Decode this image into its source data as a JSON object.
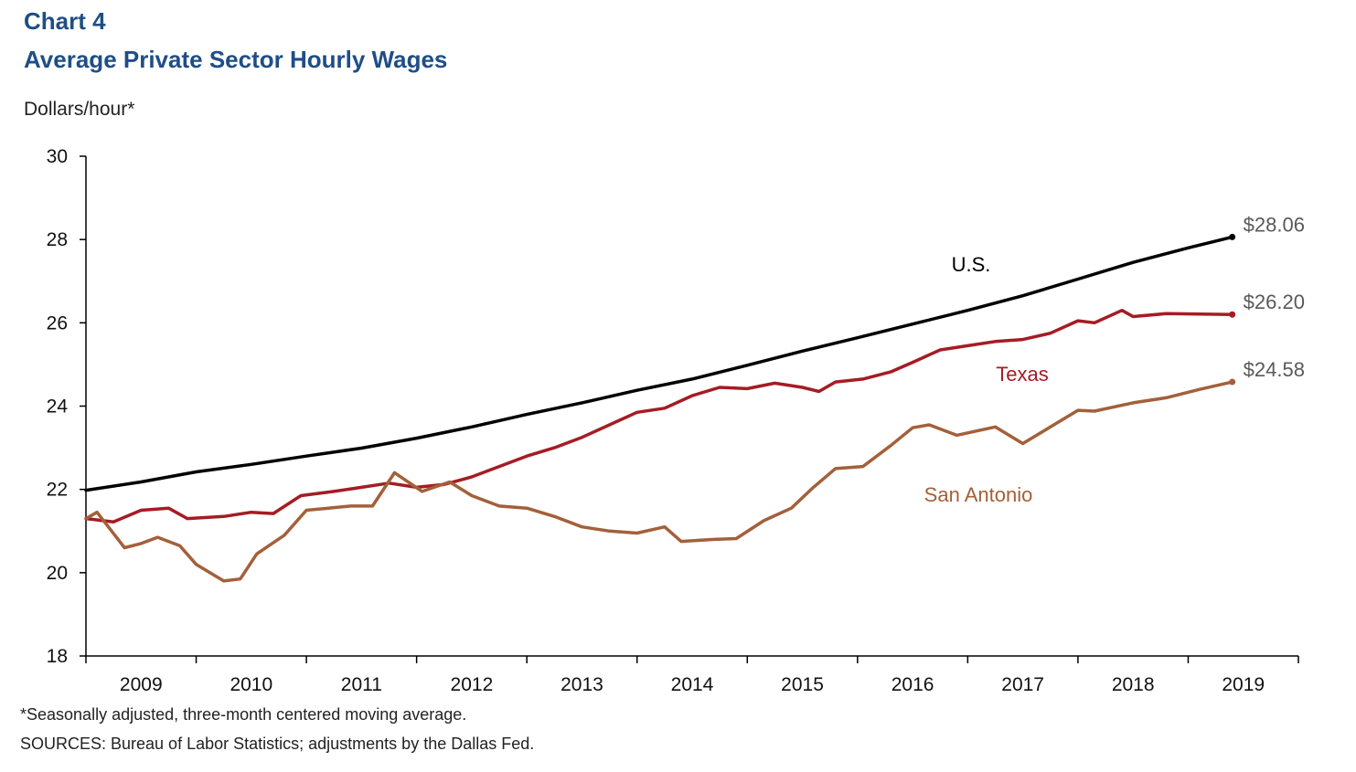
{
  "header": {
    "chart_label": "Chart 4",
    "title": "Average Private Sector Hourly Wages",
    "units": "Dollars/hour*"
  },
  "footer": {
    "footnote": "*Seasonally adjusted, three-month centered moving average.",
    "sources": "SOURCES: Bureau of Labor Statistics; adjustments by the Dallas Fed."
  },
  "chart_data": {
    "type": "line",
    "title": "Average Private Sector Hourly Wages",
    "ylabel": "Dollars/hour*",
    "xlabel": "",
    "ylim": [
      18,
      30
    ],
    "xlim": [
      2008.5,
      2019.5
    ],
    "y_ticks": [
      18,
      20,
      22,
      24,
      26,
      28,
      30
    ],
    "x_tick_labels": [
      "2009",
      "2010",
      "2011",
      "2012",
      "2013",
      "2014",
      "2015",
      "2016",
      "2017",
      "2018",
      "2019"
    ],
    "grid": false,
    "legend": "inline labels",
    "series": [
      {
        "name": "U.S.",
        "color": "#000000",
        "end_label": "$28.06",
        "points": [
          [
            2008.5,
            21.98
          ],
          [
            2009.0,
            22.18
          ],
          [
            2009.5,
            22.42
          ],
          [
            2010.0,
            22.6
          ],
          [
            2010.5,
            22.8
          ],
          [
            2011.0,
            22.99
          ],
          [
            2011.5,
            23.23
          ],
          [
            2012.0,
            23.5
          ],
          [
            2012.5,
            23.8
          ],
          [
            2013.0,
            24.08
          ],
          [
            2013.5,
            24.38
          ],
          [
            2014.0,
            24.65
          ],
          [
            2014.5,
            24.98
          ],
          [
            2015.0,
            25.32
          ],
          [
            2015.5,
            25.64
          ],
          [
            2016.0,
            25.97
          ],
          [
            2016.5,
            26.3
          ],
          [
            2017.0,
            26.65
          ],
          [
            2017.5,
            27.05
          ],
          [
            2018.0,
            27.45
          ],
          [
            2018.5,
            27.8
          ],
          [
            2018.9,
            28.06
          ]
        ]
      },
      {
        "name": "Texas",
        "color": "#a51c24",
        "end_label": "$26.20",
        "points": [
          [
            2008.5,
            21.3
          ],
          [
            2008.75,
            21.22
          ],
          [
            2009.0,
            21.5
          ],
          [
            2009.25,
            21.55
          ],
          [
            2009.42,
            21.3
          ],
          [
            2009.75,
            21.35
          ],
          [
            2010.0,
            21.45
          ],
          [
            2010.2,
            21.42
          ],
          [
            2010.45,
            21.85
          ],
          [
            2010.75,
            21.95
          ],
          [
            2011.0,
            22.05
          ],
          [
            2011.25,
            22.15
          ],
          [
            2011.5,
            22.05
          ],
          [
            2011.75,
            22.12
          ],
          [
            2012.0,
            22.3
          ],
          [
            2012.25,
            22.55
          ],
          [
            2012.5,
            22.8
          ],
          [
            2012.75,
            23.0
          ],
          [
            2013.0,
            23.25
          ],
          [
            2013.25,
            23.55
          ],
          [
            2013.5,
            23.85
          ],
          [
            2013.75,
            23.95
          ],
          [
            2014.0,
            24.25
          ],
          [
            2014.25,
            24.45
          ],
          [
            2014.5,
            24.42
          ],
          [
            2014.75,
            24.55
          ],
          [
            2015.0,
            24.45
          ],
          [
            2015.15,
            24.35
          ],
          [
            2015.3,
            24.58
          ],
          [
            2015.55,
            24.65
          ],
          [
            2015.8,
            24.82
          ],
          [
            2016.0,
            25.05
          ],
          [
            2016.25,
            25.35
          ],
          [
            2016.5,
            25.45
          ],
          [
            2016.75,
            25.55
          ],
          [
            2017.0,
            25.6
          ],
          [
            2017.25,
            25.75
          ],
          [
            2017.5,
            26.05
          ],
          [
            2017.65,
            26.0
          ],
          [
            2017.9,
            26.3
          ],
          [
            2018.0,
            26.15
          ],
          [
            2018.3,
            26.22
          ],
          [
            2018.9,
            26.2
          ]
        ]
      },
      {
        "name": "San Antonio",
        "color": "#a3603a",
        "end_label": "$24.58",
        "points": [
          [
            2008.5,
            21.3
          ],
          [
            2008.6,
            21.45
          ],
          [
            2008.85,
            20.6
          ],
          [
            2009.0,
            20.7
          ],
          [
            2009.15,
            20.85
          ],
          [
            2009.35,
            20.65
          ],
          [
            2009.5,
            20.2
          ],
          [
            2009.75,
            19.8
          ],
          [
            2009.9,
            19.85
          ],
          [
            2010.05,
            20.45
          ],
          [
            2010.3,
            20.9
          ],
          [
            2010.5,
            21.5
          ],
          [
            2010.7,
            21.55
          ],
          [
            2010.9,
            21.6
          ],
          [
            2011.1,
            21.6
          ],
          [
            2011.3,
            22.4
          ],
          [
            2011.55,
            21.95
          ],
          [
            2011.8,
            22.18
          ],
          [
            2012.0,
            21.85
          ],
          [
            2012.25,
            21.6
          ],
          [
            2012.5,
            21.55
          ],
          [
            2012.75,
            21.35
          ],
          [
            2013.0,
            21.1
          ],
          [
            2013.25,
            21.0
          ],
          [
            2013.5,
            20.95
          ],
          [
            2013.75,
            21.1
          ],
          [
            2013.9,
            20.75
          ],
          [
            2014.2,
            20.8
          ],
          [
            2014.4,
            20.82
          ],
          [
            2014.65,
            21.25
          ],
          [
            2014.9,
            21.55
          ],
          [
            2015.1,
            22.05
          ],
          [
            2015.3,
            22.5
          ],
          [
            2015.55,
            22.55
          ],
          [
            2015.8,
            23.05
          ],
          [
            2016.0,
            23.48
          ],
          [
            2016.15,
            23.55
          ],
          [
            2016.4,
            23.3
          ],
          [
            2016.75,
            23.5
          ],
          [
            2017.0,
            23.1
          ],
          [
            2017.25,
            23.5
          ],
          [
            2017.5,
            23.9
          ],
          [
            2017.65,
            23.88
          ],
          [
            2018.0,
            24.08
          ],
          [
            2018.3,
            24.2
          ],
          [
            2018.6,
            24.4
          ],
          [
            2018.9,
            24.58
          ]
        ]
      }
    ]
  }
}
